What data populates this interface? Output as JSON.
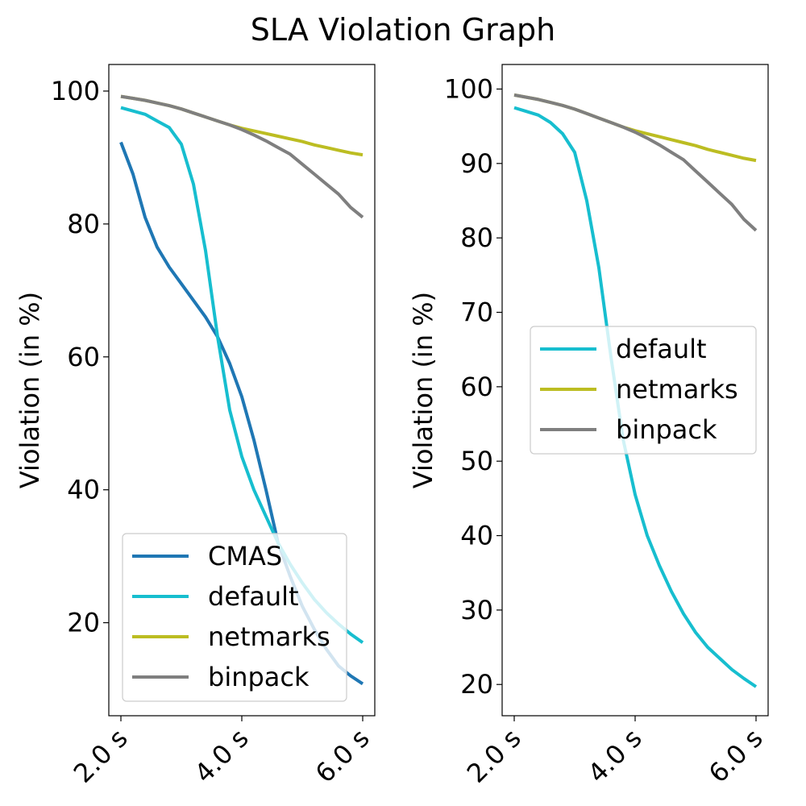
{
  "figure": {
    "title": "SLA Violation Graph"
  },
  "chart_data": [
    {
      "type": "line",
      "title": "",
      "xlabel": "",
      "ylabel": "Violation (in %)",
      "x_ticks": [
        2,
        4,
        6
      ],
      "x_tick_labels": [
        "2.0 s",
        "4.0 s",
        "6.0 s"
      ],
      "xlim": [
        1.8,
        6.2
      ],
      "y_ticks": [
        20,
        40,
        60,
        80,
        100
      ],
      "ylim": [
        6.0,
        104.0
      ],
      "grid": false,
      "legend_position": "lower-right",
      "x": [
        2.0,
        2.2,
        2.4,
        2.6,
        2.8,
        3.0,
        3.2,
        3.4,
        3.6,
        3.8,
        4.0,
        4.2,
        4.4,
        4.6,
        4.8,
        5.0,
        5.2,
        5.4,
        5.6,
        5.8,
        6.0
      ],
      "series": [
        {
          "name": "CMAS",
          "color": "#1f77b4",
          "values": [
            92.3,
            87.5,
            81.0,
            76.5,
            73.5,
            71.0,
            68.5,
            66.0,
            63.0,
            59.0,
            54.0,
            47.5,
            40.0,
            32.0,
            27.0,
            22.5,
            19.0,
            16.0,
            13.5,
            12.0,
            10.8
          ]
        },
        {
          "name": "default",
          "color": "#17becf",
          "values": [
            97.5,
            97.0,
            96.5,
            95.5,
            94.5,
            92.0,
            86.0,
            76.0,
            63.0,
            52.0,
            45.0,
            40.0,
            36.0,
            32.0,
            28.8,
            26.0,
            23.5,
            21.5,
            19.8,
            18.3,
            17.0
          ]
        },
        {
          "name": "netmarks",
          "color": "#bcbd22",
          "values": [
            99.2,
            98.9,
            98.6,
            98.2,
            97.8,
            97.3,
            96.7,
            96.1,
            95.5,
            94.9,
            94.4,
            94.0,
            93.6,
            93.2,
            92.8,
            92.4,
            91.9,
            91.5,
            91.1,
            90.7,
            90.4
          ]
        },
        {
          "name": "binpack",
          "color": "#7f7f7f",
          "values": [
            99.2,
            98.9,
            98.6,
            98.2,
            97.8,
            97.3,
            96.7,
            96.1,
            95.5,
            94.9,
            94.2,
            93.4,
            92.5,
            91.5,
            90.5,
            89.0,
            87.5,
            86.0,
            84.5,
            82.5,
            81.0
          ]
        }
      ]
    },
    {
      "type": "line",
      "title": "",
      "xlabel": "",
      "ylabel": "Violation (in %)",
      "x_ticks": [
        2,
        4,
        6
      ],
      "x_tick_labels": [
        "2.0 s",
        "4.0 s",
        "6.0 s"
      ],
      "xlim": [
        1.8,
        6.2
      ],
      "y_ticks": [
        20,
        30,
        40,
        50,
        60,
        70,
        80,
        90,
        100
      ],
      "ylim": [
        15.8,
        103.3
      ],
      "grid": false,
      "legend_position": "center-right",
      "x": [
        2.0,
        2.2,
        2.4,
        2.6,
        2.8,
        3.0,
        3.2,
        3.4,
        3.6,
        3.8,
        4.0,
        4.2,
        4.4,
        4.6,
        4.8,
        5.0,
        5.2,
        5.4,
        5.6,
        5.8,
        6.0
      ],
      "series": [
        {
          "name": "default",
          "color": "#17becf",
          "values": [
            97.5,
            97.0,
            96.5,
            95.5,
            94.0,
            91.5,
            85.0,
            76.0,
            64.0,
            53.0,
            45.5,
            40.0,
            36.0,
            32.5,
            29.5,
            27.0,
            25.0,
            23.5,
            22.0,
            20.8,
            19.7
          ]
        },
        {
          "name": "netmarks",
          "color": "#bcbd22",
          "values": [
            99.2,
            98.9,
            98.6,
            98.2,
            97.8,
            97.3,
            96.7,
            96.1,
            95.5,
            94.9,
            94.4,
            94.0,
            93.6,
            93.2,
            92.8,
            92.4,
            91.9,
            91.5,
            91.1,
            90.7,
            90.4
          ]
        },
        {
          "name": "binpack",
          "color": "#7f7f7f",
          "values": [
            99.2,
            98.9,
            98.6,
            98.2,
            97.8,
            97.3,
            96.7,
            96.1,
            95.5,
            94.9,
            94.2,
            93.4,
            92.5,
            91.5,
            90.5,
            89.0,
            87.5,
            86.0,
            84.5,
            82.5,
            81.0
          ]
        }
      ]
    }
  ]
}
